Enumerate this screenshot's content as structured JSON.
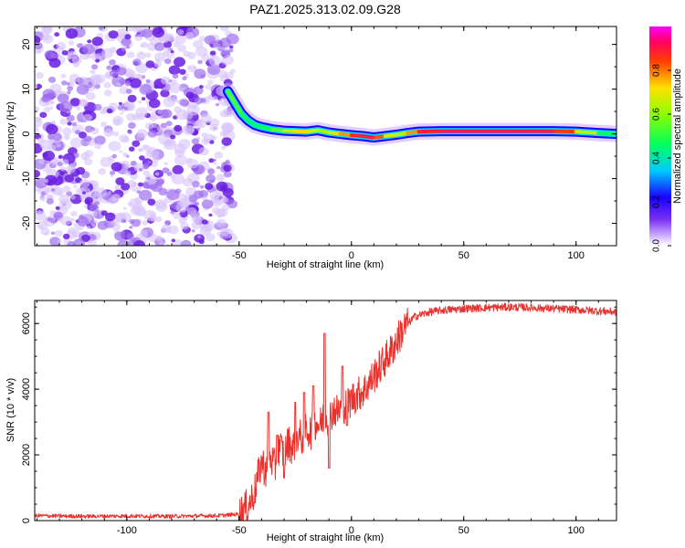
{
  "title": "PAZ1.2025.313.02.09.G28",
  "chart_data": [
    {
      "type": "heatmap",
      "id": "spectrogram",
      "title": "PAZ1.2025.313.02.09.G28",
      "xlabel": "Height of straight line (km)",
      "ylabel": "Frequency (Hz)",
      "xlim": [
        -141,
        118
      ],
      "ylim": [
        -25,
        24
      ],
      "xticks": [
        -100,
        -50,
        0,
        50,
        100
      ],
      "yticks": [
        -20,
        -10,
        0,
        10,
        20
      ],
      "noise_region_x": [
        -141,
        -55
      ],
      "ridge": {
        "x": [
          -55,
          -52,
          -49,
          -46,
          -43,
          -40,
          -35,
          -30,
          -25,
          -20,
          -15,
          -10,
          -5,
          0,
          5,
          10,
          15,
          20,
          25,
          30,
          40,
          50,
          60,
          70,
          80,
          90,
          100,
          110,
          118
        ],
        "freq": [
          9.5,
          7.0,
          4.5,
          3.0,
          2.0,
          1.5,
          1.0,
          0.7,
          0.6,
          0.5,
          0.8,
          0.3,
          0.0,
          -0.3,
          -0.5,
          -0.8,
          -0.5,
          -0.2,
          0.2,
          0.5,
          0.6,
          0.6,
          0.6,
          0.6,
          0.6,
          0.6,
          0.5,
          0.2,
          0.0
        ],
        "amplitude": [
          0.55,
          0.55,
          0.5,
          0.45,
          0.45,
          0.45,
          0.5,
          0.6,
          0.7,
          0.75,
          0.6,
          0.65,
          0.7,
          0.85,
          0.9,
          0.9,
          0.75,
          0.6,
          0.7,
          0.85,
          0.95,
          0.95,
          0.95,
          0.95,
          0.95,
          0.9,
          0.8,
          0.5,
          0.4
        ]
      },
      "colorbar": {
        "label": "Normalized spectral amplitude",
        "range": [
          0.0,
          1.0
        ],
        "ticks": [
          "0.0",
          "0.2",
          "0.4",
          "0.6",
          "0.8"
        ],
        "colormap": "rainbow"
      }
    },
    {
      "type": "line",
      "id": "snr",
      "xlabel": "Height of straight line (km)",
      "ylabel": "SNR (10 * v/v)",
      "xlim": [
        -141,
        118
      ],
      "ylim": [
        0,
        6700
      ],
      "xticks": [
        -100,
        -50,
        0,
        50,
        100
      ],
      "yticks": [
        0,
        2000,
        4000,
        6000
      ],
      "series": [
        {
          "name": "SNR",
          "color": "#e8322d",
          "x": [
            -141,
            -120,
            -100,
            -80,
            -60,
            -55,
            -50,
            -46,
            -43,
            -40,
            -38,
            -36,
            -34,
            -32,
            -30,
            -28,
            -26,
            -24,
            -22,
            -20,
            -18,
            -16,
            -14,
            -12,
            -10,
            -8,
            -6,
            -4,
            -2,
            0,
            2,
            4,
            6,
            8,
            10,
            12,
            14,
            16,
            18,
            20,
            22,
            24,
            26,
            28,
            30,
            35,
            40,
            50,
            60,
            70,
            80,
            90,
            100,
            110,
            118
          ],
          "values": [
            150,
            130,
            140,
            130,
            150,
            170,
            200,
            450,
            900,
            1800,
            1500,
            1900,
            1600,
            2300,
            2000,
            2400,
            2200,
            2600,
            2500,
            2800,
            2700,
            3000,
            2900,
            3200,
            3100,
            3400,
            3300,
            3500,
            3500,
            3700,
            3800,
            3900,
            4000,
            4200,
            4400,
            4600,
            4800,
            5000,
            5200,
            5450,
            5700,
            5900,
            6050,
            6200,
            6250,
            6350,
            6400,
            6450,
            6480,
            6500,
            6480,
            6450,
            6420,
            6380,
            6350
          ]
        }
      ],
      "spikes": [
        {
          "x": -37,
          "value": 3300
        },
        {
          "x": -33,
          "value": 2600
        },
        {
          "x": -25,
          "value": 3600
        },
        {
          "x": -21,
          "value": 3900
        },
        {
          "x": -17,
          "value": 4100
        },
        {
          "x": -12,
          "value": 5700
        },
        {
          "x": -4,
          "value": 4700
        }
      ],
      "dips": [
        {
          "x": -30,
          "value": 1300
        },
        {
          "x": -10,
          "value": 1600
        },
        {
          "x": -2,
          "value": 2900
        }
      ]
    }
  ]
}
